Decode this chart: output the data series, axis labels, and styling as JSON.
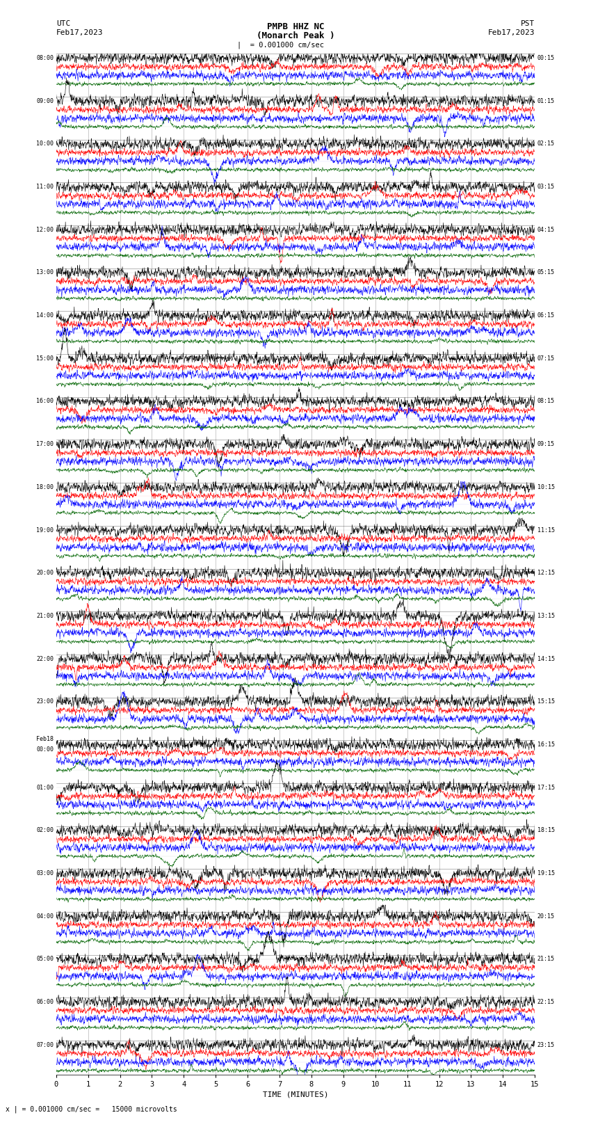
{
  "title_line1": "PMPB HHZ NC",
  "title_line2": "(Monarch Peak )",
  "scale_label": "= 0.001000 cm/sec",
  "bottom_label": "x | = 0.001000 cm/sec =   15000 microvolts",
  "xlabel": "TIME (MINUTES)",
  "left_label_top": "UTC",
  "left_label_date": "Feb17,2023",
  "right_label_top": "PST",
  "right_label_date": "Feb17,2023",
  "bg_color": "#ffffff",
  "trace_colors": [
    "#000000",
    "#ff0000",
    "#0000ff",
    "#006400"
  ],
  "utc_times": [
    "08:00",
    "09:00",
    "10:00",
    "11:00",
    "12:00",
    "13:00",
    "14:00",
    "15:00",
    "16:00",
    "17:00",
    "18:00",
    "19:00",
    "20:00",
    "21:00",
    "22:00",
    "23:00",
    "Feb18\n00:00",
    "01:00",
    "02:00",
    "03:00",
    "04:00",
    "05:00",
    "06:00",
    "07:00"
  ],
  "pst_times": [
    "00:15",
    "01:15",
    "02:15",
    "03:15",
    "04:15",
    "05:15",
    "06:15",
    "07:15",
    "08:15",
    "09:15",
    "10:15",
    "11:15",
    "12:15",
    "13:15",
    "14:15",
    "15:15",
    "16:15",
    "17:15",
    "18:15",
    "19:15",
    "20:15",
    "21:15",
    "22:15",
    "23:15"
  ],
  "num_rows": 24,
  "traces_per_row": 4,
  "minutes": 15,
  "noise_seed": 42,
  "fig_width": 8.5,
  "fig_height": 16.13,
  "dpi": 100
}
